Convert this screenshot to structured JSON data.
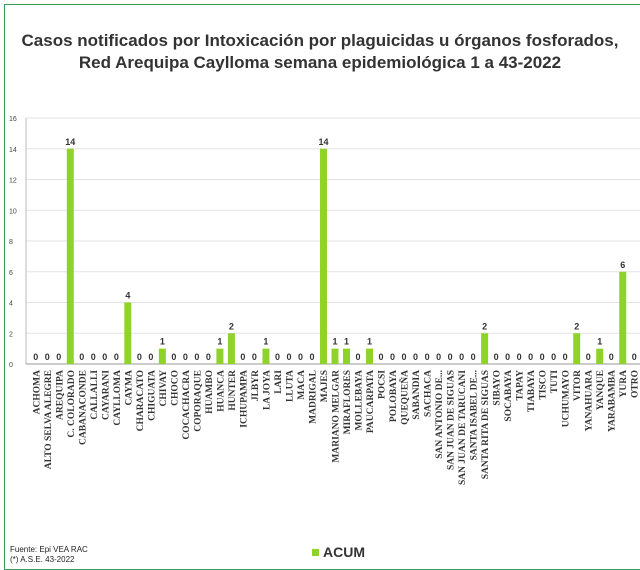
{
  "title_line1": "Casos notificados por Intoxicación por plaguicidas u órganos fosforados,",
  "title_line2": "Red Arequipa Caylloma  semana epidemiológica 1 a 43-2022",
  "source_line1": "Fuente:  Epi VEA RAC",
  "source_line2": "(*) A.S.E. 43-2022",
  "colors": {
    "bar": "#8fd32a",
    "grid": "#e3e3e3",
    "frame": "#3a9a5a",
    "text": "#333333"
  },
  "chart_data": {
    "type": "bar",
    "ylim": [
      0,
      16
    ],
    "yticks": [
      0,
      2,
      4,
      6,
      8,
      10,
      12,
      14,
      16
    ],
    "grid": true,
    "legend_position": "bottom",
    "categories": [
      "ACHOMA",
      "ALTO SELVA ALEGRE",
      "AREQUIPA",
      "C. COLORADO",
      "CABANACONDE",
      "CALLALLI",
      "CAYARANI",
      "CAYLLOMA",
      "CAYMA",
      "CHARACATO",
      "CHIGUATA",
      "CHIVAY",
      "CHOCO",
      "COCACHACRA",
      "COPORAQUE",
      "HUAMBO",
      "HUANCA",
      "HUNTER",
      "ICHUPAMPA",
      "JLBYR",
      "LA JOYA",
      "LARI",
      "LLUTA",
      "MACA",
      "MADRIGAL",
      "MAJES",
      "MARIANO MELGAR",
      "MIRAFLORES",
      "MOLLEBAYA",
      "PAUCARPATA",
      "POCSI",
      "POLOBAYA",
      "QUEQUEÑA",
      "SABANDIA",
      "SACHACA",
      "SAN ANTONIO DE...",
      "SAN JUAN DE SIGUAS",
      "SAN JUAN DE TARUCANI",
      "SANTA ISABEL DE...",
      "SANTA RITA DE SIGUAS",
      "SIBAYO",
      "SOCABAYA",
      "TAPAY",
      "TIABAYA",
      "TISCO",
      "TUTI",
      "UCHUMAYO",
      "VITOR",
      "YANAHUARA",
      "YANQUE",
      "YARABAMBA",
      "YURA",
      "OTRO"
    ],
    "series": [
      {
        "name": "ACUM",
        "values": [
          0,
          0,
          0,
          14,
          0,
          0,
          0,
          0,
          4,
          0,
          0,
          1,
          0,
          0,
          0,
          0,
          1,
          2,
          0,
          0,
          1,
          0,
          0,
          0,
          0,
          14,
          1,
          1,
          0,
          1,
          0,
          0,
          0,
          0,
          0,
          0,
          0,
          0,
          0,
          2,
          0,
          0,
          0,
          0,
          0,
          0,
          0,
          2,
          0,
          1,
          0,
          6,
          0
        ]
      }
    ]
  }
}
